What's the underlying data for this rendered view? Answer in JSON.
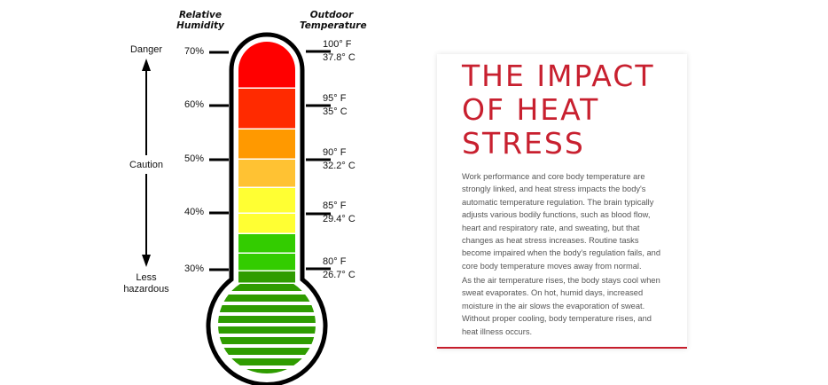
{
  "headers": {
    "humidity": [
      "Relative",
      "Humidity"
    ],
    "temperature": [
      "Outdoor",
      "Temperature"
    ]
  },
  "scale": {
    "top": "Danger",
    "middle": "Caution",
    "bottom": [
      "Less",
      "hazardous"
    ]
  },
  "humidity_marks": [
    "70%",
    "60%",
    "50%",
    "40%",
    "30%"
  ],
  "temperature_marks": [
    {
      "f": "100° F",
      "c": "37.8° C"
    },
    {
      "f": "95° F",
      "c": "35° C"
    },
    {
      "f": "90° F",
      "c": "32.2° C"
    },
    {
      "f": "85° F",
      "c": "29.4° C"
    },
    {
      "f": "80° F",
      "c": "26.7° C"
    }
  ],
  "colors": {
    "bands": [
      "#ff0000",
      "#ff2a00",
      "#ff9900",
      "#ffc233",
      "#ffff33",
      "#ffff33",
      "#33cc00",
      "#33cc00",
      "#2f9c00",
      "#2f9c00"
    ],
    "bulb": "#2f9c00",
    "accent": "#c8202f"
  },
  "card": {
    "title": [
      "THE IMPACT",
      "OF HEAT",
      "STRESS"
    ],
    "paragraph1": "Work performance and core body temperature are strongly linked, and heat stress impacts the body's automatic temperature regulation. The brain typically adjusts various bodily functions, such as blood flow, heart and respiratory rate, and sweating, but that changes as heat stress increases. Routine tasks become impaired when the body's regulation fails, and core body temperature moves away from normal.",
    "paragraph2": "As the air temperature rises, the body stays cool when sweat evaporates. On hot, humid days, increased moisture in the air slows the evaporation of sweat. Without proper cooling, body temperature rises, and heat illness occurs."
  }
}
